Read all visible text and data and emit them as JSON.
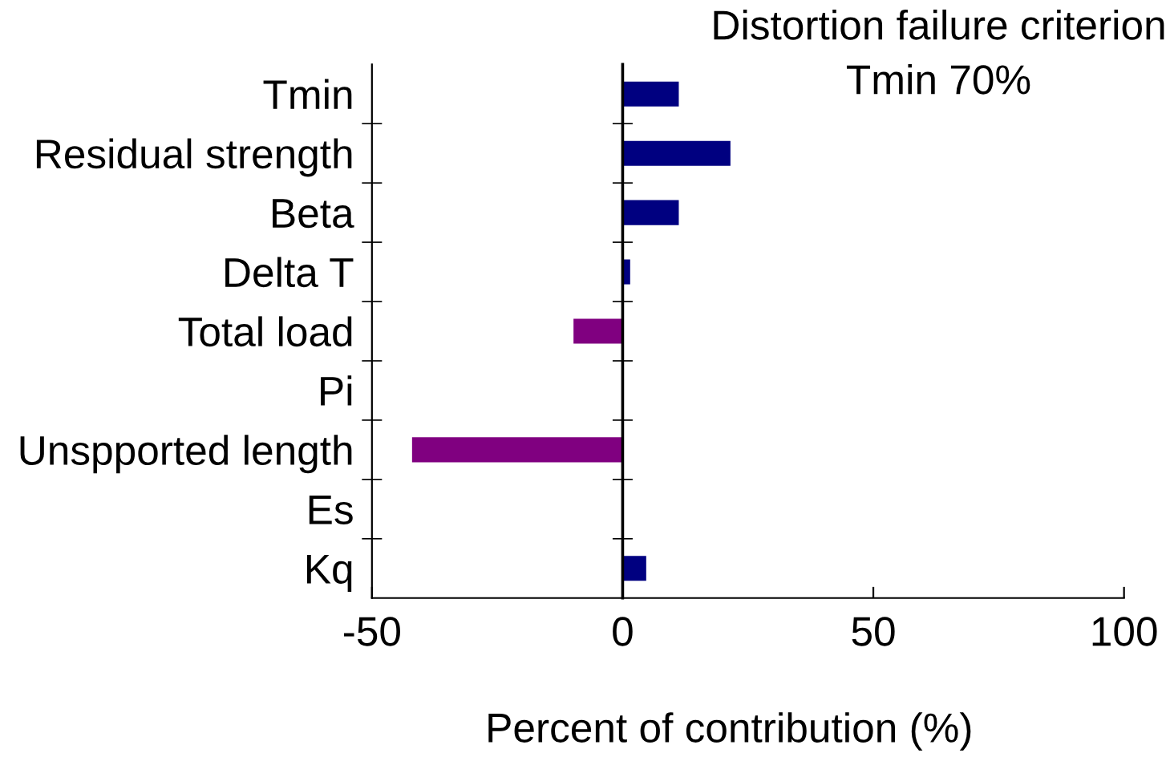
{
  "chart_data": {
    "type": "bar",
    "orientation": "horizontal",
    "title": "Distortion failure criterion",
    "subtitle": "Tmin 70%",
    "xlabel": "Percent of contribution (%)",
    "categories": [
      "Tmin",
      "Residual strength",
      "Beta",
      "Delta T",
      "Total load",
      "Pi",
      "Unspported length",
      "Es",
      "Kq"
    ],
    "values": [
      11.2,
      21.5,
      11.2,
      1.5,
      -9.8,
      0,
      -42,
      0,
      4.7
    ],
    "colors": [
      "#000080",
      "#000080",
      "#000080",
      "#000080",
      "#800080",
      "#000080",
      "#800080",
      "#000080",
      "#000080"
    ],
    "ref_lines": [
      {
        "axis": "x",
        "value": 0,
        "color": "#000000"
      }
    ],
    "xlim": [
      -50,
      100
    ],
    "xticks": [
      -50,
      0,
      50,
      100
    ],
    "grid": false,
    "legend": false
  }
}
